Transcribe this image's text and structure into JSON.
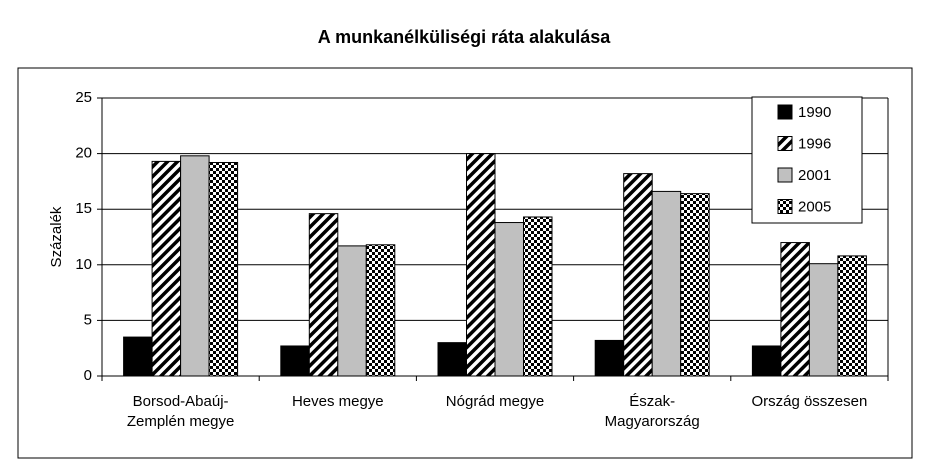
{
  "chart_data": {
    "type": "bar",
    "title": "A munkanélküliségi ráta alakulása",
    "y_label": "Százalék",
    "categories": [
      "Borsod-Abaúj-\nZemplén megye",
      "Heves megye",
      "Nógrád megye",
      "Észak-\nMagyarország",
      "Ország összesen"
    ],
    "series": [
      {
        "name": "1990",
        "color": "#000000",
        "pattern": "solid",
        "values": [
          3.5,
          2.7,
          3.0,
          3.2,
          2.7
        ]
      },
      {
        "name": "1996",
        "color": "#000000",
        "pattern": "diagonal",
        "values": [
          19.3,
          14.6,
          20.0,
          18.2,
          12.0
        ]
      },
      {
        "name": "2001",
        "color": "#c0c0c0",
        "pattern": "solid",
        "values": [
          19.8,
          11.7,
          13.8,
          16.6,
          10.1
        ]
      },
      {
        "name": "2005",
        "color": "#000000",
        "pattern": "checker",
        "values": [
          19.2,
          11.8,
          14.3,
          16.4,
          10.8
        ]
      }
    ],
    "ylim": [
      0,
      25
    ],
    "yticks": [
      0,
      5,
      10,
      15,
      20,
      25
    ],
    "grid": true,
    "legend": "top-right"
  }
}
